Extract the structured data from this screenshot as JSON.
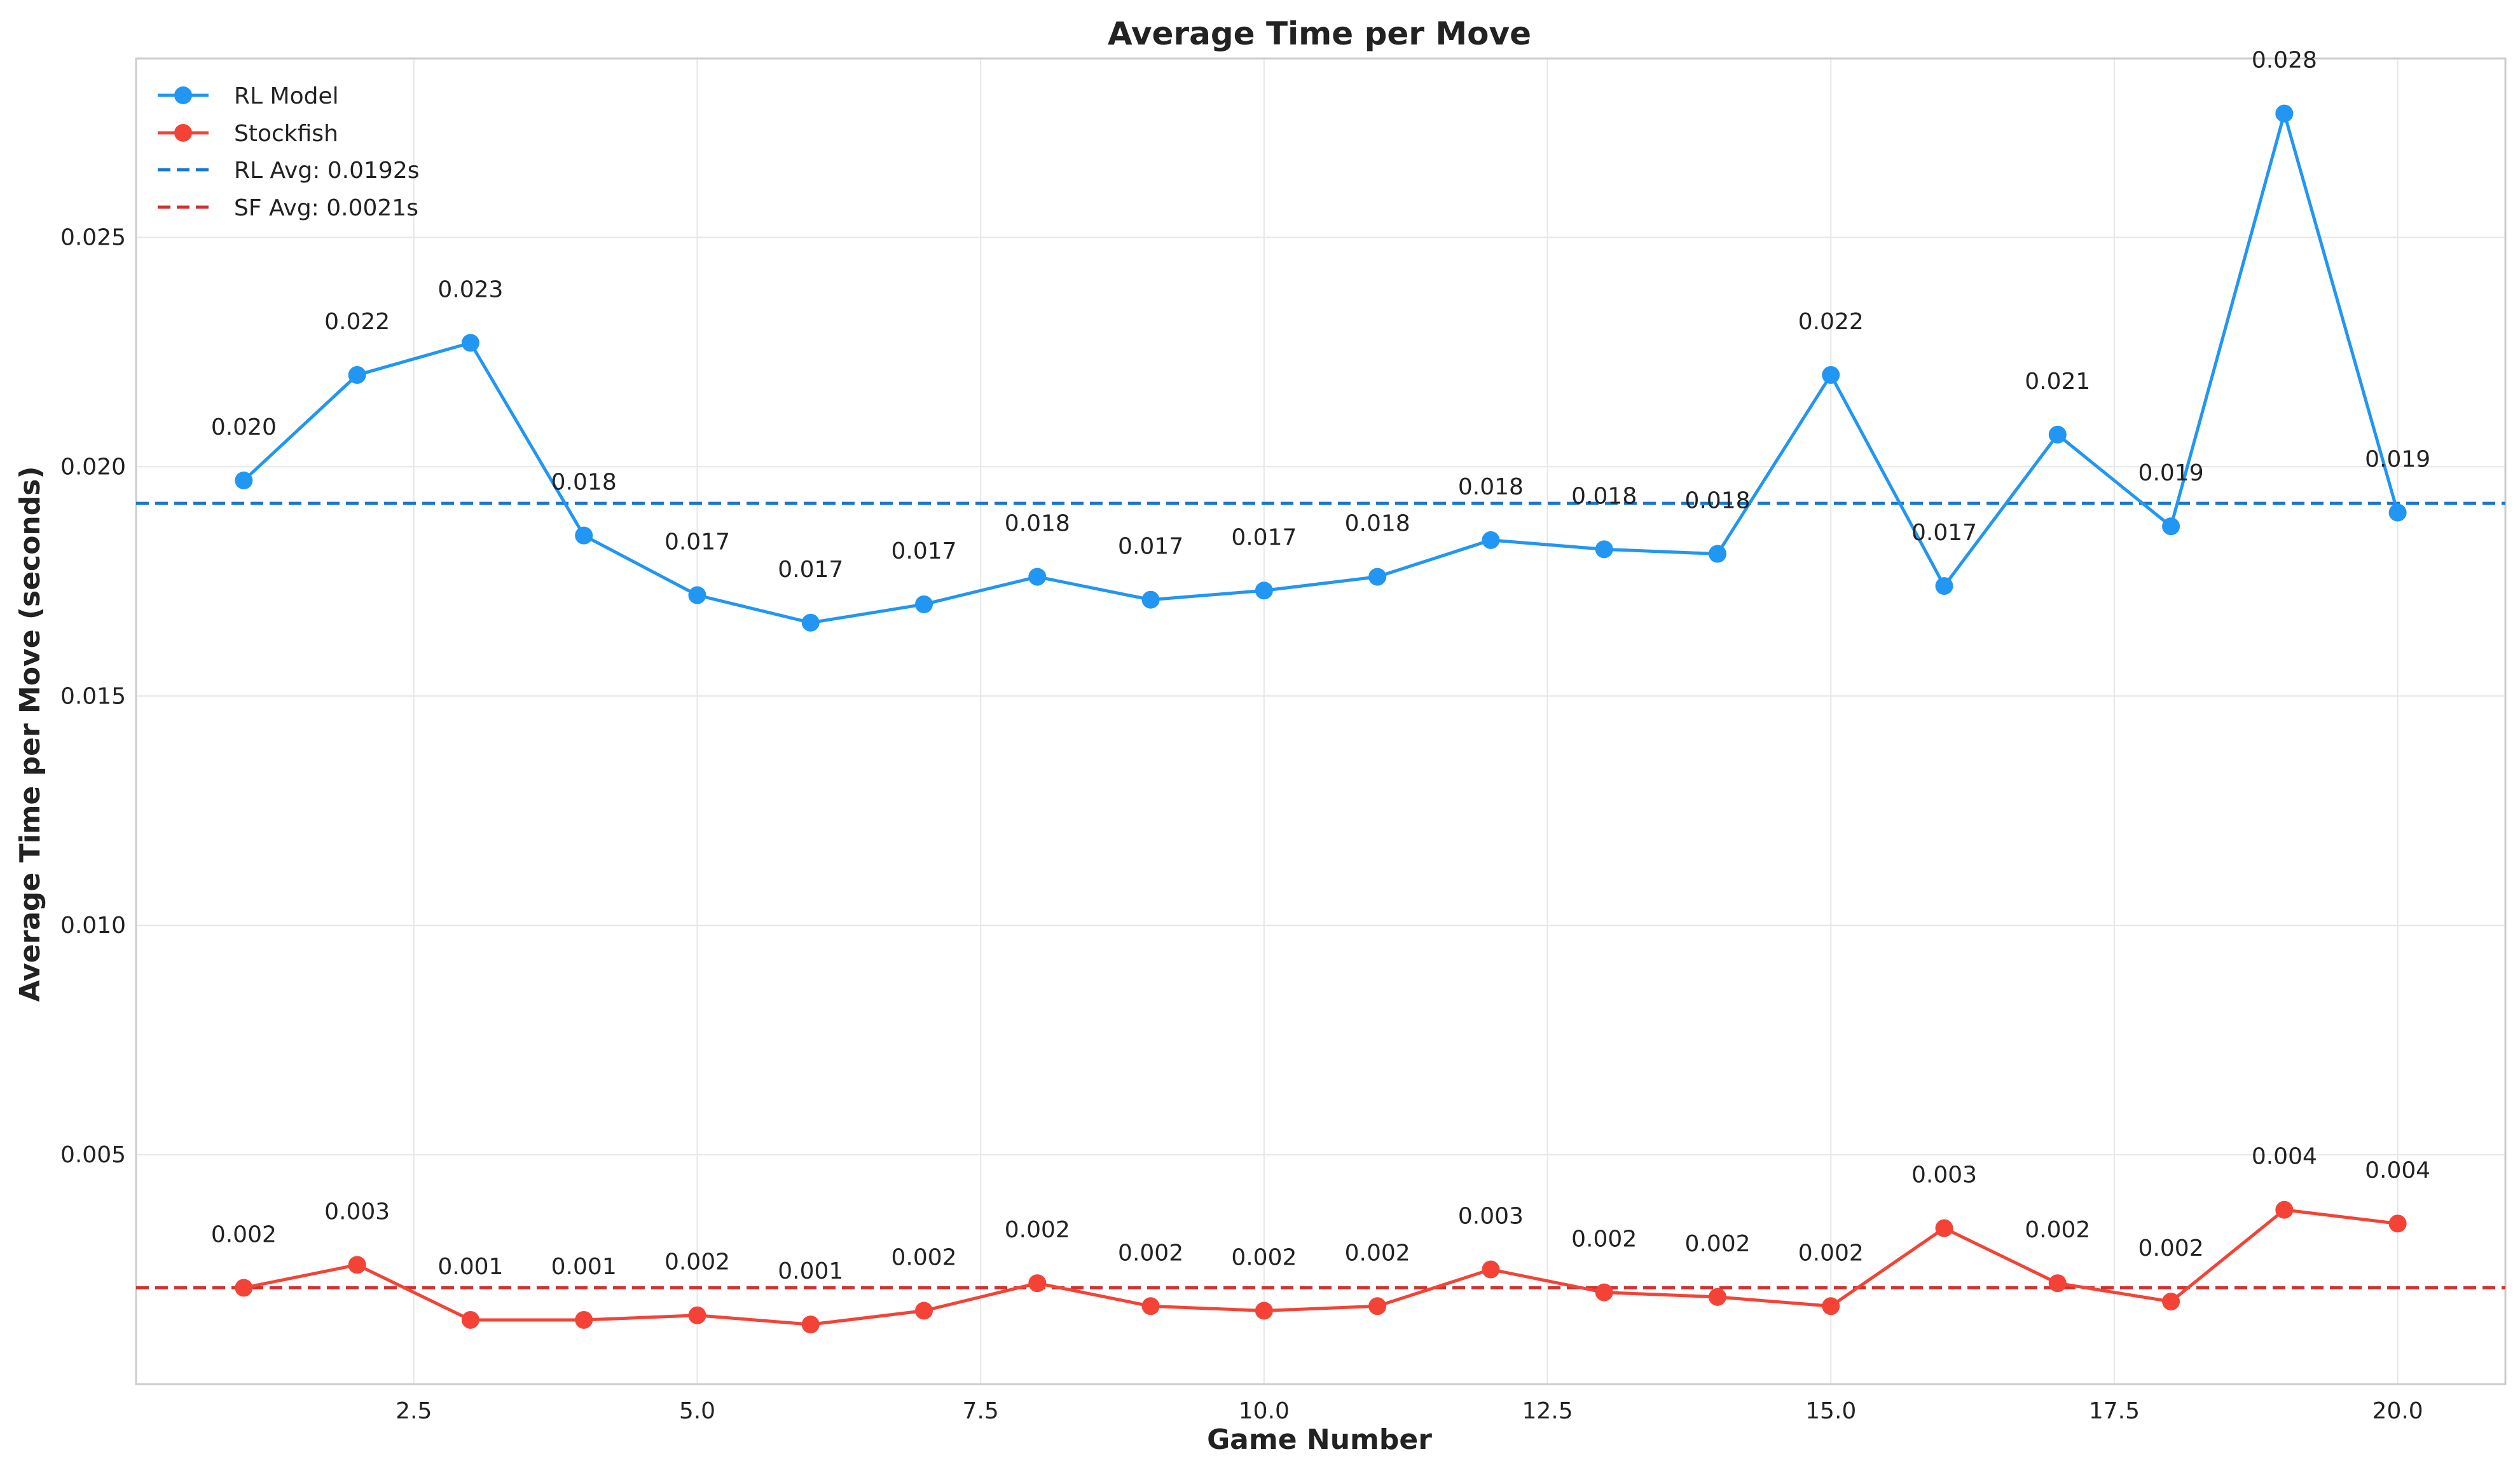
{
  "chart_data": {
    "type": "line",
    "title": "Average Time per Move",
    "xlabel": "Game Number",
    "ylabel": "Average Time per Move (seconds)",
    "xlim": [
      0.05,
      20.95
    ],
    "ylim": [
      0.0,
      0.0289
    ],
    "x_ticks": [
      2.5,
      5.0,
      7.5,
      10.0,
      12.5,
      15.0,
      17.5,
      20.0
    ],
    "y_ticks": [
      0.005,
      0.01,
      0.015,
      0.02,
      0.025
    ],
    "x_tick_labels": [
      "2.5",
      "5.0",
      "7.5",
      "10.0",
      "12.5",
      "15.0",
      "17.5",
      "20.0"
    ],
    "y_tick_labels": [
      "0.005",
      "0.010",
      "0.015",
      "0.020",
      "0.025"
    ],
    "grid": true,
    "legend_position": "top-left",
    "x": [
      1,
      2,
      3,
      4,
      5,
      6,
      7,
      8,
      9,
      10,
      11,
      12,
      13,
      14,
      15,
      16,
      17,
      18,
      19,
      20
    ],
    "series": [
      {
        "name": "RL Model",
        "color": "#2196F3",
        "marker": "circle",
        "values": [
          0.0197,
          0.022,
          0.0227,
          0.0185,
          0.0172,
          0.0166,
          0.017,
          0.0176,
          0.0171,
          0.0173,
          0.0176,
          0.0184,
          0.0182,
          0.0181,
          0.022,
          0.0174,
          0.0207,
          0.0187,
          0.0277,
          0.019
        ],
        "labels": [
          "0.020",
          "0.022",
          "0.023",
          "0.018",
          "0.017",
          "0.017",
          "0.017",
          "0.018",
          "0.017",
          "0.017",
          "0.018",
          "0.018",
          "0.018",
          "0.018",
          "0.022",
          "0.017",
          "0.021",
          "0.019",
          "0.028",
          "0.019"
        ]
      },
      {
        "name": "Stockfish",
        "color": "#F44336",
        "marker": "circle",
        "values": [
          0.0021,
          0.0026,
          0.0014,
          0.0014,
          0.0015,
          0.0013,
          0.0016,
          0.0022,
          0.0017,
          0.0016,
          0.0017,
          0.0025,
          0.002,
          0.0019,
          0.0017,
          0.0034,
          0.0022,
          0.0018,
          0.0038,
          0.0035
        ],
        "labels": [
          "0.002",
          "0.003",
          "0.001",
          "0.001",
          "0.002",
          "0.001",
          "0.002",
          "0.002",
          "0.002",
          "0.002",
          "0.002",
          "0.003",
          "0.002",
          "0.002",
          "0.002",
          "0.003",
          "0.002",
          "0.002",
          "0.004",
          "0.004"
        ]
      }
    ],
    "reference_lines": [
      {
        "name": "RL Avg: 0.0192s",
        "value": 0.0192,
        "color": "#1976D2",
        "style": "dashed"
      },
      {
        "name": "SF Avg: 0.0021s",
        "value": 0.0021,
        "color": "#D32F2F",
        "style": "dashed"
      }
    ]
  }
}
